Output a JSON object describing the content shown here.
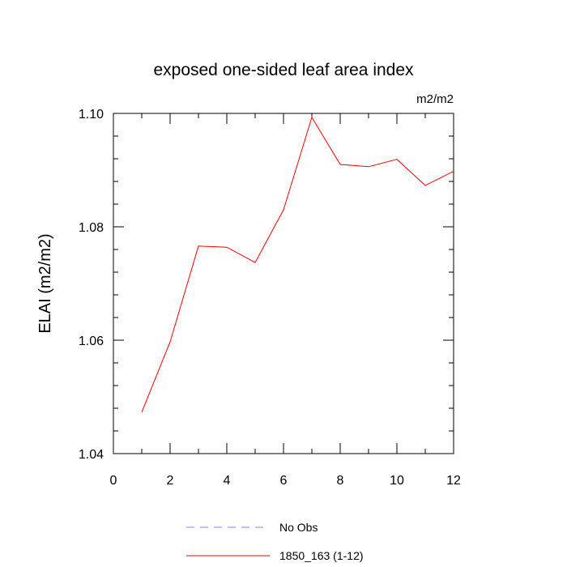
{
  "chart_data": {
    "type": "line",
    "title": "exposed one-sided leaf area index",
    "units_label": "m2/m2",
    "ylabel": "ELAI  (m2/m2)",
    "xlabel": "",
    "xlim": [
      0,
      12
    ],
    "ylim": [
      1.04,
      1.1
    ],
    "x_ticks": [
      0,
      2,
      4,
      6,
      8,
      10,
      12
    ],
    "x_tick_labels": [
      "0",
      "2",
      "4",
      "6",
      "8",
      "10",
      "12"
    ],
    "y_ticks": [
      1.04,
      1.06,
      1.08,
      1.1
    ],
    "y_tick_labels": [
      "1.04",
      "1.06",
      "1.08",
      "1.10"
    ],
    "grid": false,
    "legend_position": "bottom",
    "series": [
      {
        "name": "No Obs",
        "color": "#8080ff",
        "style": "dashed",
        "x": [],
        "values": []
      },
      {
        "name": "1850_163 (1-12)",
        "color": "#ff0000",
        "style": "solid",
        "x": [
          1,
          2,
          3,
          4,
          5,
          6,
          7,
          8,
          9,
          10,
          11,
          12
        ],
        "values": [
          1.0473,
          1.0597,
          1.0766,
          1.0764,
          1.0737,
          1.083,
          1.0993,
          1.091,
          1.0906,
          1.0919,
          1.0873,
          1.0898
        ]
      }
    ]
  }
}
